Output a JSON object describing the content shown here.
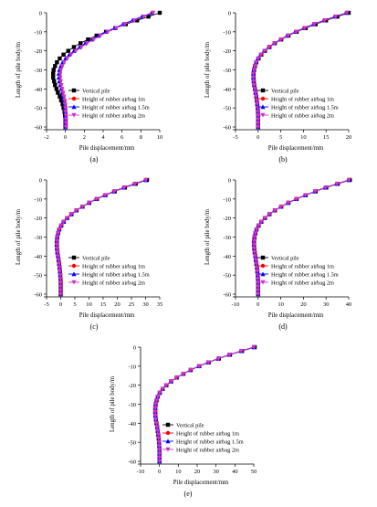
{
  "legend": [
    {
      "name": "Vertical pile",
      "color": "#000000",
      "marker": "square"
    },
    {
      "name": "Height of rubber airbag 1m",
      "color": "#ff0000",
      "marker": "circle"
    },
    {
      "name": "Height of rubber airbag 1.5m",
      "color": "#0000ff",
      "marker": "triangle-up"
    },
    {
      "name": "Height of rubber airbag 2m",
      "color": "#cc33cc",
      "marker": "triangle-down"
    }
  ],
  "chart_data": [
    {
      "panel_label": "(a)",
      "type": "line",
      "xlabel": "Pile displacement/mm",
      "ylabel": "Length of pile body/m",
      "xlim": [
        -2,
        10
      ],
      "ylim": [
        -60,
        0
      ],
      "xticks": [
        -2,
        0,
        2,
        4,
        6,
        8,
        10
      ],
      "xtick_labels": [
        "-2",
        "0",
        "2",
        "4",
        "6",
        "8",
        "10"
      ],
      "yticks": [
        0,
        -10,
        -20,
        -30,
        -40,
        -50,
        -60
      ],
      "ytick_labels": [
        "0",
        "-10",
        "-20",
        "-30",
        "-40",
        "-50",
        "-60"
      ],
      "y": [
        0,
        -2,
        -4,
        -6,
        -8,
        -10,
        -12,
        -14,
        -16,
        -18,
        -20,
        -22,
        -24,
        -26,
        -28,
        -30,
        -32,
        -34,
        -36,
        -38,
        -40,
        -42,
        -44,
        -46,
        -48,
        -50,
        -52,
        -54,
        -56,
        -58,
        -60
      ],
      "series": [
        {
          "name": "Vertical pile",
          "x": [
            10.0,
            8.8,
            7.6,
            6.4,
            5.3,
            4.3,
            3.3,
            2.4,
            1.6,
            0.9,
            0.3,
            -0.2,
            -0.6,
            -0.9,
            -1.1,
            -1.25,
            -1.3,
            -1.3,
            -1.2,
            -1.1,
            -0.95,
            -0.8,
            -0.6,
            -0.45,
            -0.3,
            -0.2,
            -0.1,
            -0.05,
            0.0,
            0.0,
            0.0
          ]
        },
        {
          "name": "Height of rubber airbag 1m",
          "x": [
            9.2,
            8.2,
            7.2,
            6.2,
            5.3,
            4.4,
            3.6,
            2.9,
            2.2,
            1.6,
            1.0,
            0.5,
            0.1,
            -0.2,
            -0.4,
            -0.55,
            -0.6,
            -0.6,
            -0.55,
            -0.5,
            -0.4,
            -0.3,
            -0.2,
            -0.1,
            -0.05,
            0.0,
            0.0,
            0.05,
            0.05,
            0.05,
            0.05
          ]
        },
        {
          "name": "Height of rubber airbag 1.5m",
          "x": [
            9.2,
            8.1,
            7.1,
            6.1,
            5.2,
            4.3,
            3.5,
            2.8,
            2.1,
            1.5,
            0.9,
            0.4,
            0.0,
            -0.3,
            -0.5,
            -0.65,
            -0.7,
            -0.7,
            -0.65,
            -0.55,
            -0.45,
            -0.35,
            -0.25,
            -0.15,
            -0.1,
            -0.05,
            0.0,
            0.0,
            0.0,
            0.0,
            0.0
          ]
        },
        {
          "name": "Height of rubber airbag 2m",
          "x": [
            9.3,
            8.3,
            7.3,
            6.3,
            5.4,
            4.5,
            3.7,
            3.0,
            2.3,
            1.7,
            1.1,
            0.6,
            0.2,
            -0.15,
            -0.35,
            -0.5,
            -0.55,
            -0.55,
            -0.5,
            -0.45,
            -0.35,
            -0.25,
            -0.15,
            -0.1,
            -0.05,
            0.0,
            0.0,
            0.05,
            0.05,
            0.05,
            0.05
          ]
        }
      ]
    },
    {
      "panel_label": "(b)",
      "type": "line",
      "xlabel": "Pile displacement/mm",
      "ylabel": "Length of pile body/m",
      "xlim": [
        -5,
        20
      ],
      "ylim": [
        -60,
        0
      ],
      "xticks": [
        -5,
        0,
        5,
        10,
        15,
        20
      ],
      "xtick_labels": [
        "-5",
        "0",
        "5",
        "10",
        "15",
        "20"
      ],
      "yticks": [
        0,
        -10,
        -20,
        -30,
        -40,
        -50,
        -60
      ],
      "ytick_labels": [
        "0",
        "-10",
        "-20",
        "-30",
        "-40",
        "-50",
        "-60"
      ],
      "y": [
        0,
        -2,
        -4,
        -6,
        -8,
        -10,
        -12,
        -14,
        -16,
        -18,
        -20,
        -22,
        -24,
        -26,
        -28,
        -30,
        -32,
        -34,
        -36,
        -38,
        -40,
        -42,
        -44,
        -46,
        -48,
        -50,
        -52,
        -54,
        -56,
        -58,
        -60
      ],
      "series": [
        {
          "name": "Vertical pile",
          "x": [
            20.0,
            17.5,
            15.0,
            12.7,
            10.5,
            8.5,
            6.7,
            5.1,
            3.7,
            2.5,
            1.5,
            0.7,
            0.1,
            -0.4,
            -0.7,
            -0.9,
            -1.0,
            -1.0,
            -0.95,
            -0.85,
            -0.7,
            -0.55,
            -0.4,
            -0.3,
            -0.2,
            -0.1,
            -0.05,
            0.0,
            0.0,
            0.0,
            0.0
          ]
        },
        {
          "name": "Height of rubber airbag 1m",
          "x": [
            19.5,
            17.0,
            14.6,
            12.3,
            10.2,
            8.3,
            6.5,
            5.0,
            3.6,
            2.4,
            1.4,
            0.6,
            0.0,
            -0.45,
            -0.75,
            -0.95,
            -1.05,
            -1.05,
            -1.0,
            -0.9,
            -0.75,
            -0.6,
            -0.45,
            -0.3,
            -0.2,
            -0.1,
            -0.05,
            0.0,
            0.0,
            0.0,
            0.0
          ]
        },
        {
          "name": "Height of rubber airbag 1.5m",
          "x": [
            19.5,
            16.9,
            14.5,
            12.2,
            10.1,
            8.2,
            6.4,
            4.9,
            3.5,
            2.3,
            1.3,
            0.5,
            -0.1,
            -0.5,
            -0.8,
            -1.0,
            -1.1,
            -1.1,
            -1.0,
            -0.9,
            -0.75,
            -0.6,
            -0.45,
            -0.3,
            -0.2,
            -0.1,
            -0.05,
            0.0,
            0.0,
            0.0,
            0.0
          ]
        },
        {
          "name": "Height of rubber airbag 2m",
          "x": [
            19.6,
            17.1,
            14.7,
            12.4,
            10.3,
            8.4,
            6.6,
            5.0,
            3.6,
            2.4,
            1.4,
            0.6,
            0.0,
            -0.45,
            -0.75,
            -0.95,
            -1.05,
            -1.05,
            -1.0,
            -0.9,
            -0.75,
            -0.6,
            -0.45,
            -0.3,
            -0.2,
            -0.1,
            -0.05,
            0.0,
            0.0,
            0.0,
            0.0
          ]
        }
      ]
    },
    {
      "panel_label": "(c)",
      "type": "line",
      "xlabel": "Pile displacement/mm",
      "ylabel": "Length of pile body/m",
      "xlim": [
        -5,
        35
      ],
      "ylim": [
        -60,
        0
      ],
      "xticks": [
        -5,
        0,
        5,
        10,
        15,
        20,
        25,
        30,
        35
      ],
      "xtick_labels": [
        "-5",
        "0",
        "5",
        "10",
        "15",
        "20",
        "25",
        "30",
        "35"
      ],
      "yticks": [
        0,
        -10,
        -20,
        -30,
        -40,
        -50,
        -60
      ],
      "ytick_labels": [
        "0",
        "-10",
        "-20",
        "-30",
        "-40",
        "-50",
        "-60"
      ],
      "y": [
        0,
        -2,
        -4,
        -6,
        -8,
        -10,
        -12,
        -14,
        -16,
        -18,
        -20,
        -22,
        -24,
        -26,
        -28,
        -30,
        -32,
        -34,
        -36,
        -38,
        -40,
        -42,
        -44,
        -46,
        -48,
        -50,
        -52,
        -54,
        -56,
        -58,
        -60
      ],
      "series": [
        {
          "name": "Vertical pile",
          "x": [
            30.5,
            26.5,
            22.7,
            19.1,
            15.8,
            12.8,
            10.1,
            7.7,
            5.6,
            3.8,
            2.3,
            1.1,
            0.2,
            -0.5,
            -0.9,
            -1.2,
            -1.35,
            -1.35,
            -1.3,
            -1.15,
            -0.95,
            -0.75,
            -0.55,
            -0.4,
            -0.25,
            -0.15,
            -0.05,
            0.0,
            0.0,
            0.0,
            0.0
          ]
        },
        {
          "name": "Height of rubber airbag 1m",
          "x": [
            30.0,
            26.1,
            22.3,
            18.8,
            15.6,
            12.6,
            10.0,
            7.6,
            5.5,
            3.7,
            2.2,
            1.0,
            0.1,
            -0.55,
            -0.95,
            -1.25,
            -1.4,
            -1.4,
            -1.3,
            -1.15,
            -0.95,
            -0.75,
            -0.55,
            -0.4,
            -0.25,
            -0.15,
            -0.05,
            0.0,
            0.0,
            0.0,
            0.0
          ]
        },
        {
          "name": "Height of rubber airbag 1.5m",
          "x": [
            30.0,
            26.0,
            22.2,
            18.7,
            15.5,
            12.5,
            9.9,
            7.5,
            5.4,
            3.6,
            2.1,
            0.9,
            0.0,
            -0.6,
            -1.0,
            -1.3,
            -1.45,
            -1.45,
            -1.35,
            -1.2,
            -1.0,
            -0.8,
            -0.6,
            -0.4,
            -0.25,
            -0.15,
            -0.05,
            0.0,
            0.0,
            0.0,
            0.0
          ]
        },
        {
          "name": "Height of rubber airbag 2m",
          "x": [
            30.1,
            26.2,
            22.4,
            18.9,
            15.7,
            12.7,
            10.0,
            7.6,
            5.5,
            3.7,
            2.2,
            1.0,
            0.1,
            -0.55,
            -0.95,
            -1.25,
            -1.4,
            -1.4,
            -1.3,
            -1.15,
            -0.95,
            -0.75,
            -0.55,
            -0.4,
            -0.25,
            -0.15,
            -0.05,
            0.0,
            0.0,
            0.0,
            0.0
          ]
        }
      ]
    },
    {
      "panel_label": "(d)",
      "type": "line",
      "xlabel": "Pile displacement/mm",
      "ylabel": "Length of pile body/m",
      "xlim": [
        -10,
        40
      ],
      "ylim": [
        -60,
        0
      ],
      "xticks": [
        -10,
        0,
        10,
        20,
        30,
        40
      ],
      "xtick_labels": [
        "-10",
        "0",
        "10",
        "20",
        "30",
        "40"
      ],
      "yticks": [
        0,
        -10,
        -20,
        -30,
        -40,
        -50,
        -60
      ],
      "ytick_labels": [
        "0",
        "-10",
        "-20",
        "-30",
        "-40",
        "-50",
        "-60"
      ],
      "y": [
        0,
        -2,
        -4,
        -6,
        -8,
        -10,
        -12,
        -14,
        -16,
        -18,
        -20,
        -22,
        -24,
        -26,
        -28,
        -30,
        -32,
        -34,
        -36,
        -38,
        -40,
        -42,
        -44,
        -46,
        -48,
        -50,
        -52,
        -54,
        -56,
        -58,
        -60
      ],
      "series": [
        {
          "name": "Vertical pile",
          "x": [
            40.5,
            35.2,
            30.1,
            25.4,
            21.0,
            17.0,
            13.4,
            10.2,
            7.4,
            5.0,
            3.0,
            1.4,
            0.2,
            -0.7,
            -1.2,
            -1.6,
            -1.8,
            -1.8,
            -1.7,
            -1.5,
            -1.25,
            -1.0,
            -0.75,
            -0.5,
            -0.35,
            -0.2,
            -0.1,
            0.0,
            0.0,
            0.0,
            0.0
          ]
        },
        {
          "name": "Height of rubber airbag 1m",
          "x": [
            40.0,
            34.8,
            29.7,
            25.1,
            20.8,
            16.8,
            13.2,
            10.1,
            7.3,
            4.9,
            2.9,
            1.3,
            0.1,
            -0.75,
            -1.25,
            -1.65,
            -1.85,
            -1.85,
            -1.75,
            -1.55,
            -1.3,
            -1.0,
            -0.75,
            -0.5,
            -0.35,
            -0.2,
            -0.1,
            0.0,
            0.0,
            0.0,
            0.0
          ]
        },
        {
          "name": "Height of rubber airbag 1.5m",
          "x": [
            40.0,
            34.7,
            29.6,
            25.0,
            20.7,
            16.7,
            13.1,
            10.0,
            7.2,
            4.8,
            2.8,
            1.2,
            0.0,
            -0.8,
            -1.3,
            -1.7,
            -1.9,
            -1.9,
            -1.8,
            -1.6,
            -1.3,
            -1.05,
            -0.8,
            -0.55,
            -0.35,
            -0.2,
            -0.1,
            0.0,
            0.0,
            0.0,
            0.0
          ]
        },
        {
          "name": "Height of rubber airbag 2m",
          "x": [
            40.1,
            34.9,
            29.8,
            25.2,
            20.9,
            16.9,
            13.3,
            10.1,
            7.3,
            4.9,
            2.9,
            1.3,
            0.1,
            -0.75,
            -1.25,
            -1.65,
            -1.85,
            -1.85,
            -1.75,
            -1.55,
            -1.3,
            -1.0,
            -0.75,
            -0.5,
            -0.35,
            -0.2,
            -0.1,
            0.0,
            0.0,
            0.0,
            0.0
          ]
        }
      ]
    },
    {
      "panel_label": "(e)",
      "type": "line",
      "xlabel": "Pile displacement/mm",
      "ylabel": "Length of pile body/m",
      "xlim": [
        -10,
        50
      ],
      "ylim": [
        -60,
        0
      ],
      "xticks": [
        -10,
        0,
        10,
        20,
        30,
        40,
        50
      ],
      "xtick_labels": [
        "-10",
        "0",
        "10",
        "20",
        "30",
        "40",
        "50"
      ],
      "yticks": [
        0,
        -10,
        -20,
        -30,
        -40,
        -50,
        -60
      ],
      "ytick_labels": [
        "0",
        "-10",
        "-20",
        "-30",
        "-40",
        "-50",
        "-60"
      ],
      "y": [
        0,
        -2,
        -4,
        -6,
        -8,
        -10,
        -12,
        -14,
        -16,
        -18,
        -20,
        -22,
        -24,
        -26,
        -28,
        -30,
        -32,
        -34,
        -36,
        -38,
        -40,
        -42,
        -44,
        -46,
        -48,
        -50,
        -52,
        -54,
        -56,
        -58,
        -60
      ],
      "series": [
        {
          "name": "Vertical pile",
          "x": [
            50.5,
            43.8,
            37.4,
            31.5,
            26.1,
            21.1,
            16.6,
            12.7,
            9.2,
            6.2,
            3.7,
            1.7,
            0.2,
            -0.85,
            -1.5,
            -2.0,
            -2.2,
            -2.2,
            -2.1,
            -1.85,
            -1.55,
            -1.2,
            -0.9,
            -0.6,
            -0.4,
            -0.25,
            -0.1,
            0.0,
            0.0,
            0.0,
            0.0
          ]
        },
        {
          "name": "Height of rubber airbag 1m",
          "x": [
            50.0,
            43.3,
            37.0,
            31.2,
            25.8,
            20.9,
            16.5,
            12.6,
            9.1,
            6.1,
            3.6,
            1.6,
            0.1,
            -0.9,
            -1.55,
            -2.05,
            -2.25,
            -2.25,
            -2.15,
            -1.9,
            -1.6,
            -1.25,
            -0.9,
            -0.6,
            -0.4,
            -0.25,
            -0.1,
            0.0,
            0.0,
            0.0,
            0.0
          ]
        },
        {
          "name": "Height of rubber airbag 1.5m",
          "x": [
            50.0,
            43.2,
            36.9,
            31.1,
            25.7,
            20.8,
            16.4,
            12.5,
            9.0,
            6.0,
            3.5,
            1.5,
            0.0,
            -0.95,
            -1.6,
            -2.1,
            -2.3,
            -2.3,
            -2.2,
            -1.95,
            -1.6,
            -1.25,
            -0.95,
            -0.65,
            -0.4,
            -0.25,
            -0.1,
            0.0,
            0.0,
            0.0,
            0.0
          ]
        },
        {
          "name": "Height of rubber airbag 2m",
          "x": [
            50.1,
            43.4,
            37.1,
            31.3,
            25.9,
            21.0,
            16.5,
            12.6,
            9.1,
            6.1,
            3.6,
            1.6,
            0.1,
            -0.9,
            -1.55,
            -2.05,
            -2.25,
            -2.25,
            -2.15,
            -1.9,
            -1.6,
            -1.25,
            -0.9,
            -0.6,
            -0.4,
            -0.25,
            -0.1,
            0.0,
            0.0,
            0.0,
            0.0
          ]
        }
      ]
    }
  ]
}
